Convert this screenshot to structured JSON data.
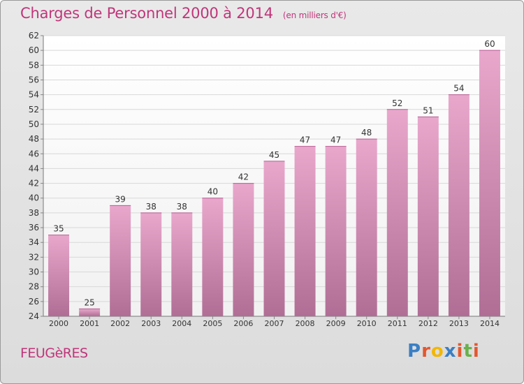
{
  "title": "Charges de Personnel 2000 à 2014",
  "subtitle": "(en milliers d'€)",
  "commune": "FEUGèRES",
  "logo": {
    "text": "Proxiti",
    "letter_colors": [
      "#3a7fc4",
      "#e4572e",
      "#f2b705",
      "#3a7fc4",
      "#e4572e",
      "#6ab04c",
      "#e4572e"
    ]
  },
  "colors": {
    "accent": "#c0357a",
    "bar_top": "#e9a7cc",
    "bar_bottom": "#b06e95"
  },
  "chart_data": {
    "type": "bar",
    "categories": [
      "2000",
      "2001",
      "2002",
      "2003",
      "2004",
      "2005",
      "2006",
      "2007",
      "2008",
      "2009",
      "2010",
      "2011",
      "2012",
      "2013",
      "2014"
    ],
    "values": [
      35,
      25,
      39,
      38,
      38,
      40,
      42,
      45,
      47,
      47,
      48,
      52,
      51,
      54,
      60
    ],
    "ylim": [
      24,
      62
    ],
    "yticks": [
      24,
      26,
      28,
      30,
      32,
      34,
      36,
      38,
      40,
      42,
      44,
      46,
      48,
      50,
      52,
      54,
      56,
      58,
      60,
      62
    ],
    "grid": true
  }
}
